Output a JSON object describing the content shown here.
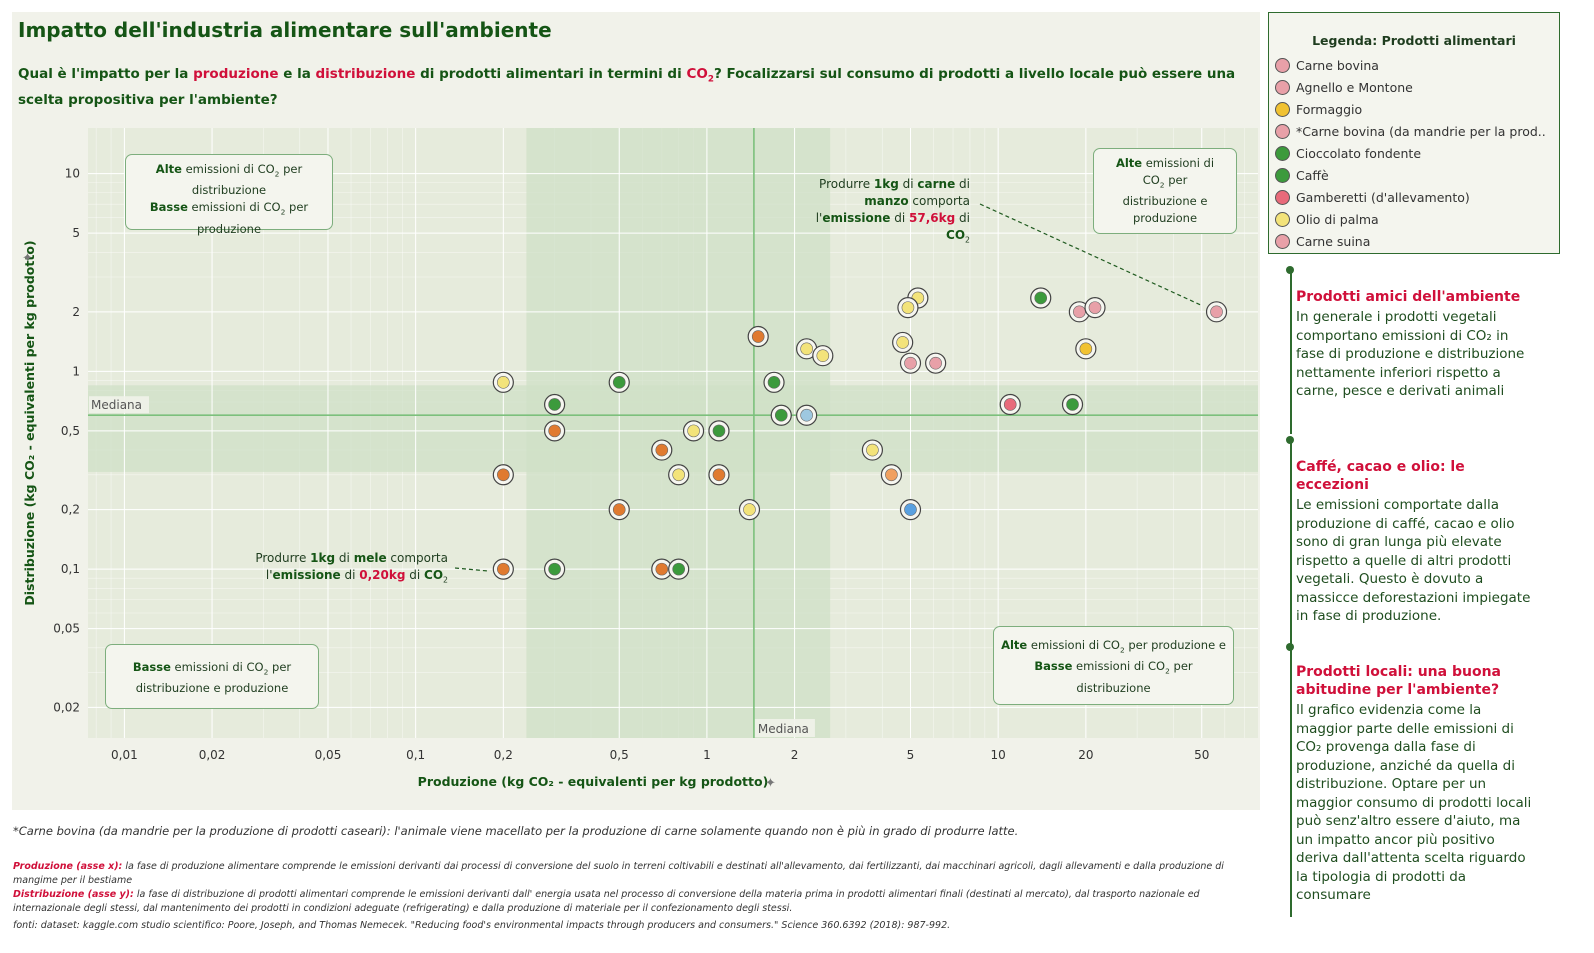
{
  "title": "Impatto dell'industria alimentare sull'ambiente",
  "subtitle": {
    "p1": "Qual è l'impatto per la ",
    "hl1": "produzione",
    "p2": " e la ",
    "hl2": "distribuzione",
    "p3": " di prodotti alimentari in termini di ",
    "hl3": "CO",
    "hl3sub": "2",
    "p4": "?  Focalizzarsi sul consumo di prodotti a livello locale può essere una scelta propositiva per l'ambiente?"
  },
  "colors": {
    "accent_green": "#155515",
    "accent_red": "#d0103a",
    "band": "#cfe0c7",
    "median_line": "#7cc07c"
  },
  "legend": {
    "title": "Legenda: Prodotti alimentari",
    "items": [
      {
        "label": "Carne bovina",
        "color": "#e8a0a8",
        "icon": "meat-icon"
      },
      {
        "label": "Agnello e Montone",
        "color": "#e8a0a8",
        "icon": "meat-icon"
      },
      {
        "label": "Formaggio",
        "color": "#f1c232",
        "icon": "cheese-icon"
      },
      {
        "label": "*Carne bovina (da mandrie per la prod..",
        "color": "#e8a0a8",
        "icon": "meat-icon"
      },
      {
        "label": "Cioccolato fondente",
        "color": "#3c9a3c",
        "icon": "leaf-icon"
      },
      {
        "label": "Caffè",
        "color": "#3c9a3c",
        "icon": "leaf-icon"
      },
      {
        "label": "Gamberetti (d'allevamento)",
        "color": "#e86a7a",
        "icon": "shrimp-icon"
      },
      {
        "label": "Olio di palma",
        "color": "#f3e37a",
        "icon": "oil-icon"
      },
      {
        "label": "Carne suina",
        "color": "#e8a0a8",
        "icon": "meat-icon"
      }
    ]
  },
  "stories": [
    {
      "heading": "Prodotti amici dell'ambiente",
      "body": "In generale i prodotti vegetali comportano emissioni di CO₂ in fase di produzione e distribuzione nettamente inferiori rispetto a carne, pesce e derivati animali"
    },
    {
      "heading": "Caffé, cacao e olio: le eccezioni",
      "body": "Le emissioni comportate dalla produzione di caffé, cacao e olio sono di gran lunga più elevate rispetto a quelle di altri prodotti vegetali. Questo è dovuto a massicce deforestazioni impiegate in fase di produzione."
    },
    {
      "heading": "Prodotti locali: una buona abitudine per l'ambiente?",
      "body": "Il grafico evidenzia come la maggior parte delle emissioni di CO₂ provenga dalla fase di produzione, anziché da quella di distribuzione. Optare per un maggior consumo di prodotti locali può senz'altro essere d'aiuto, ma un impatto ancor più positivo deriva dall'attenta scelta riguardo la tipologia di prodotti da consumare"
    }
  ],
  "quadrants": {
    "top_left": {
      "b1": "Alte",
      "t1": " emissioni di CO",
      "s1": "2",
      "t2": " per distribuzione",
      "b2": "Basse",
      "t3": " emissioni di CO",
      "s2": "2",
      "t4": " per produzione"
    },
    "top_right": {
      "b1": "Alte",
      "t1": " emissioni di CO",
      "s1": "2",
      "t2": " per distribuzione e produzione"
    },
    "bottom_left": {
      "b1": "Basse",
      "t1": " emissioni di CO",
      "s1": "2",
      "t2": " per distribuzione e produzione"
    },
    "bottom_right": {
      "b1": "Alte",
      "t1": " emissioni di CO",
      "s1": "2",
      "t2": " per produzione e ",
      "b2": "Basse",
      "t3": " emissioni di CO",
      "s2": "2",
      "t4": " per distribuzione"
    }
  },
  "annotations": {
    "beef": {
      "t1": "Produrre ",
      "b1": "1kg",
      "t2": " di ",
      "b2": "carne",
      "t3": " di ",
      "b3": "manzo",
      "t4": " comporta l'",
      "b4": "emissione",
      "t5": " di ",
      "r1": "57,6kg",
      "t6": " di ",
      "b5": "CO",
      "s1": "2"
    },
    "apple": {
      "t1": "Produrre ",
      "b1": "1kg",
      "t2": " di ",
      "b2": "mele",
      "t3": " comporta l'",
      "b3": "emissione",
      "t4": " di ",
      "r1": "0,20kg",
      "t5": " di ",
      "b4": "CO",
      "s1": "2"
    }
  },
  "chart_data": {
    "type": "scatter",
    "title": "Impatto dell'industria alimentare sull'ambiente",
    "xlabel": "Produzione (kg CO₂ - equivalenti per kg prodotto)",
    "ylabel": "Distribuzione (kg CO₂ - equivalenti per kg prodotto)",
    "x_scale": "log",
    "y_scale": "log",
    "xlim": [
      0.0075,
      78
    ],
    "ylim": [
      0.014,
      17
    ],
    "x_ticks": [
      0.01,
      0.02,
      0.05,
      0.1,
      0.2,
      0.5,
      1,
      2,
      5,
      10,
      20,
      50
    ],
    "x_tick_labels": [
      "0,01",
      "0,02",
      "0,05",
      "0,1",
      "0,2",
      "0,5",
      "1",
      "2",
      "5",
      "10",
      "20",
      "50"
    ],
    "y_ticks": [
      0.02,
      0.05,
      0.1,
      0.2,
      0.5,
      1,
      2,
      5,
      10
    ],
    "y_tick_labels": [
      "0,02",
      "0,05",
      "0,1",
      "0,2",
      "0,5",
      "1",
      "2",
      "5",
      "10"
    ],
    "median_label": "Mediana",
    "median_x": 1.45,
    "median_y": 0.6,
    "band_x": [
      0.24,
      2.65
    ],
    "band_y": [
      0.31,
      0.85
    ],
    "grid": true,
    "points": [
      {
        "x": 56.2,
        "y": 2.0,
        "color": "#e8a0a8"
      },
      {
        "x": 19.0,
        "y": 2.0,
        "color": "#e8a0a8"
      },
      {
        "x": 21.5,
        "y": 2.1,
        "color": "#e8a0a8"
      },
      {
        "x": 14.0,
        "y": 2.35,
        "color": "#3c9a3c"
      },
      {
        "x": 20.0,
        "y": 1.3,
        "color": "#f1c232"
      },
      {
        "x": 18.0,
        "y": 0.68,
        "color": "#3c9a3c"
      },
      {
        "x": 11.0,
        "y": 0.68,
        "color": "#e86a7a"
      },
      {
        "x": 5.3,
        "y": 2.35,
        "color": "#f3e37a"
      },
      {
        "x": 4.9,
        "y": 2.1,
        "color": "#f3e37a"
      },
      {
        "x": 4.7,
        "y": 1.4,
        "color": "#f3e37a"
      },
      {
        "x": 5.0,
        "y": 1.1,
        "color": "#e8a0a8"
      },
      {
        "x": 6.1,
        "y": 1.1,
        "color": "#e8a0a8"
      },
      {
        "x": 3.7,
        "y": 0.4,
        "color": "#f3e37a"
      },
      {
        "x": 4.3,
        "y": 0.3,
        "color": "#f0a060"
      },
      {
        "x": 5.0,
        "y": 0.2,
        "color": "#5aa0e0"
      },
      {
        "x": 2.2,
        "y": 1.3,
        "color": "#f3e37a"
      },
      {
        "x": 2.5,
        "y": 1.2,
        "color": "#f3e37a"
      },
      {
        "x": 1.5,
        "y": 1.5,
        "color": "#e07a30"
      },
      {
        "x": 1.7,
        "y": 0.88,
        "color": "#3c9a3c"
      },
      {
        "x": 1.8,
        "y": 0.6,
        "color": "#3c9a3c"
      },
      {
        "x": 2.2,
        "y": 0.6,
        "color": "#9ec8e0"
      },
      {
        "x": 1.1,
        "y": 0.5,
        "color": "#3c9a3c"
      },
      {
        "x": 1.1,
        "y": 0.3,
        "color": "#e07a30"
      },
      {
        "x": 1.4,
        "y": 0.2,
        "color": "#f3e37a"
      },
      {
        "x": 0.9,
        "y": 0.5,
        "color": "#f3e37a"
      },
      {
        "x": 0.8,
        "y": 0.3,
        "color": "#f3e37a"
      },
      {
        "x": 0.7,
        "y": 0.4,
        "color": "#e07a30"
      },
      {
        "x": 0.7,
        "y": 0.1,
        "color": "#e07a30"
      },
      {
        "x": 0.8,
        "y": 0.1,
        "color": "#3c9a3c"
      },
      {
        "x": 0.5,
        "y": 0.88,
        "color": "#3c9a3c"
      },
      {
        "x": 0.5,
        "y": 0.2,
        "color": "#e07a30"
      },
      {
        "x": 0.3,
        "y": 0.68,
        "color": "#3c9a3c"
      },
      {
        "x": 0.3,
        "y": 0.5,
        "color": "#e07a30"
      },
      {
        "x": 0.3,
        "y": 0.1,
        "color": "#3c9a3c"
      },
      {
        "x": 0.2,
        "y": 0.88,
        "color": "#f3e37a"
      },
      {
        "x": 0.2,
        "y": 0.3,
        "color": "#e07a30"
      },
      {
        "x": 0.2,
        "y": 0.1,
        "color": "#e07a30"
      }
    ]
  },
  "footnotes": {
    "star": "*Carne bovina (da mandrie per la produzione di prodotti caseari): l'animale viene macellato per la produzione di carne solamente quando non è più in grado di produrre latte.",
    "prod_label": "Produzione (asse x):",
    "prod_text": " la fase di produzione alimentare comprende le emissioni derivanti dai processi di conversione del suolo in terreni coltivabili e destinati all'allevamento, dai fertilizzanti, dai macchinari agricoli, dagli allevamenti  e dalla produzione di mangime per il bestiame",
    "dist_label": "Distribuzione (asse y):",
    "dist_text": " la fase di distribuzione di prodotti alimentari comprende le emissioni derivanti dall' energia usata nel processo di conversione della materia prima in prodotti alimentari finali (destinati al mercato), dal trasporto nazionale ed internazionale degli stessi, dal mantenimento dei prodotti in condizioni adeguate (refrigerating) e dalla produzione di materiale per il confezionamento degli stessi.",
    "source": "fonti: dataset: kaggle.com studio scientifico: Poore, Joseph, and Thomas Nemecek. \"Reducing food's environmental impacts through producers and consumers.\" Science 360.6392 (2018): 987-992."
  }
}
